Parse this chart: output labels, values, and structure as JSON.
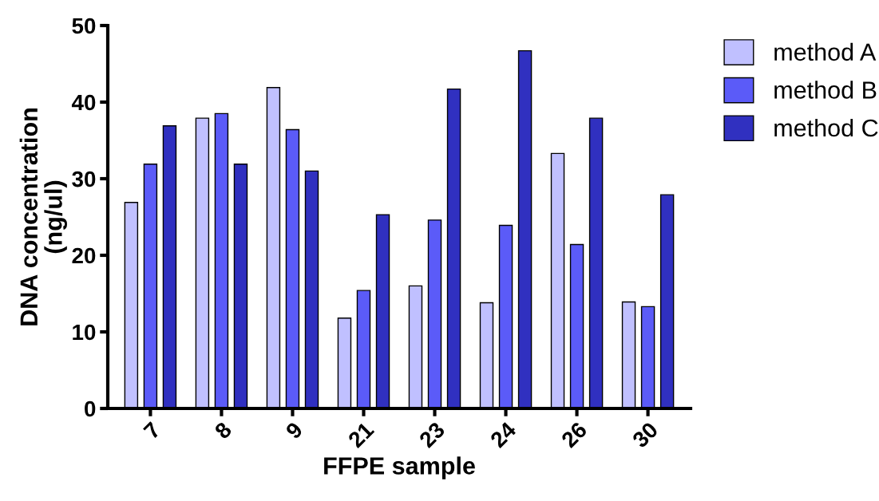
{
  "chart_data": {
    "type": "bar",
    "xlabel": "FFPE sample",
    "ylabel": "DNA concentration\n(ng/ul)",
    "categories": [
      "7",
      "8",
      "9",
      "21",
      "23",
      "24",
      "26",
      "30"
    ],
    "series": [
      {
        "name": "method A",
        "color": "#c0c0ff",
        "values": [
          26.9,
          37.9,
          41.9,
          11.8,
          16.0,
          13.8,
          33.3,
          13.9
        ]
      },
      {
        "name": "method B",
        "color": "#5b5bf8",
        "values": [
          31.9,
          38.5,
          36.4,
          15.4,
          24.6,
          23.9,
          21.4,
          13.3
        ]
      },
      {
        "name": "method C",
        "color": "#3030c0",
        "values": [
          36.9,
          31.9,
          31.0,
          25.3,
          41.7,
          46.7,
          37.9,
          27.9
        ]
      }
    ],
    "ylim": [
      0,
      50
    ],
    "yticks": [
      0,
      10,
      20,
      30,
      40,
      50
    ],
    "grid": false,
    "legend": "top right"
  }
}
